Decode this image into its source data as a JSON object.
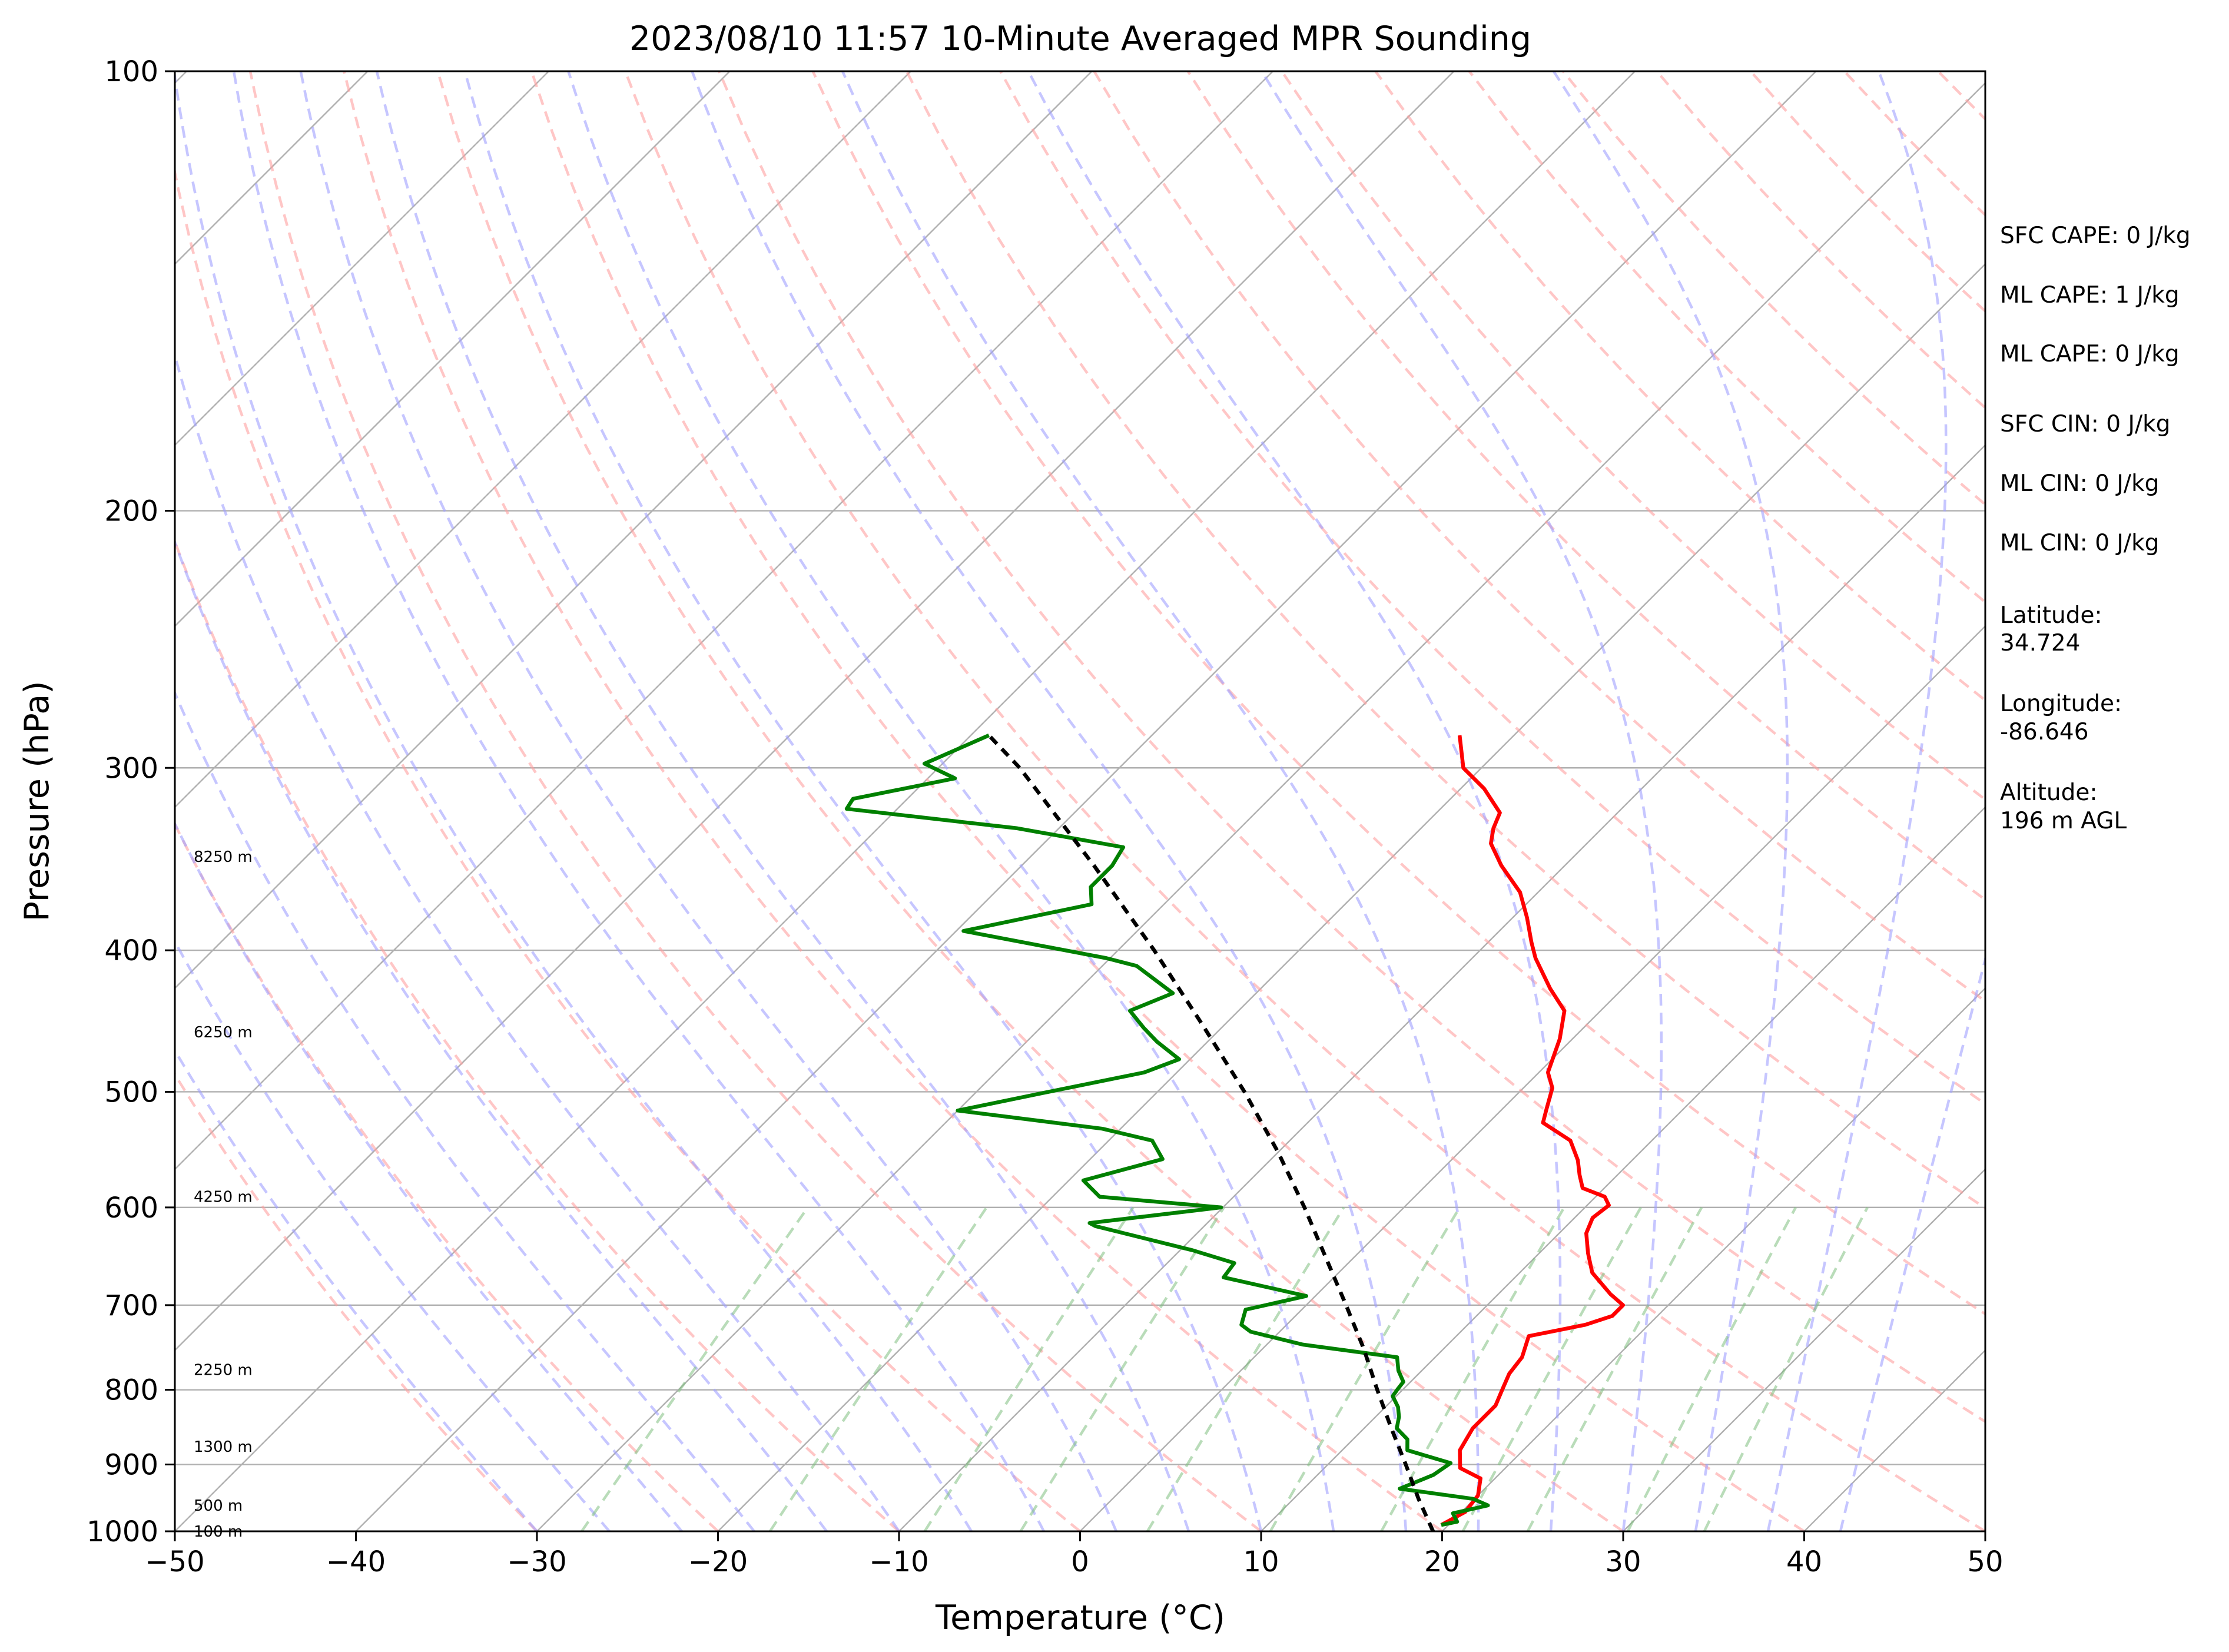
{
  "chart_data": {
    "type": "line",
    "title": "2023/08/10 11:57 10-Minute Averaged MPR Sounding",
    "xlabel": "Temperature (°C)",
    "ylabel": "Pressure (hPa)",
    "xlim": [
      -50,
      50
    ],
    "ylim": [
      1000,
      100
    ],
    "y_scale": "log",
    "grid": true,
    "x_ticks": [
      "−50",
      "−40",
      "−30",
      "−20",
      "−10",
      "0",
      "10",
      "20",
      "30",
      "40",
      "50"
    ],
    "y_ticks": [
      "100",
      "200",
      "300",
      "400",
      "500",
      "600",
      "700",
      "800",
      "900",
      "1000"
    ],
    "height_labels": [
      {
        "p": 1000,
        "text": "100 m"
      },
      {
        "p": 960,
        "text": "500 m"
      },
      {
        "p": 875,
        "text": "1300 m"
      },
      {
        "p": 775,
        "text": "2250 m"
      },
      {
        "p": 590,
        "text": "4250 m"
      },
      {
        "p": 455,
        "text": "6250 m"
      },
      {
        "p": 345,
        "text": "8250 m"
      }
    ],
    "series": [
      {
        "role": "temperature",
        "color": "#ff0000",
        "points": [
          {
            "p": 990,
            "t": 19.6
          },
          {
            "p": 970,
            "t": 20.2
          },
          {
            "p": 945,
            "t": 20.0
          },
          {
            "p": 920,
            "t": 19.2
          },
          {
            "p": 905,
            "t": 17.5
          },
          {
            "p": 880,
            "t": 16.5
          },
          {
            "p": 850,
            "t": 16.0
          },
          {
            "p": 820,
            "t": 16.0
          },
          {
            "p": 800,
            "t": 15.5
          },
          {
            "p": 780,
            "t": 15.0
          },
          {
            "p": 760,
            "t": 14.8
          },
          {
            "p": 735,
            "t": 14.0
          },
          {
            "p": 722,
            "t": 16.5
          },
          {
            "p": 712,
            "t": 17.5
          },
          {
            "p": 700,
            "t": 17.5
          },
          {
            "p": 688,
            "t": 16.2
          },
          {
            "p": 665,
            "t": 14.0
          },
          {
            "p": 645,
            "t": 12.7
          },
          {
            "p": 625,
            "t": 11.5
          },
          {
            "p": 610,
            "t": 11.0
          },
          {
            "p": 598,
            "t": 11.2
          },
          {
            "p": 590,
            "t": 10.5
          },
          {
            "p": 582,
            "t": 8.8
          },
          {
            "p": 570,
            "t": 7.9
          },
          {
            "p": 557,
            "t": 7.0
          },
          {
            "p": 540,
            "t": 5.5
          },
          {
            "p": 525,
            "t": 3.0
          },
          {
            "p": 515,
            "t": 2.5
          },
          {
            "p": 497,
            "t": 1.6
          },
          {
            "p": 485,
            "t": 0.5
          },
          {
            "p": 460,
            "t": -0.7
          },
          {
            "p": 440,
            "t": -2.0
          },
          {
            "p": 425,
            "t": -4.0
          },
          {
            "p": 405,
            "t": -6.5
          },
          {
            "p": 395,
            "t": -7.6
          },
          {
            "p": 380,
            "t": -9.2
          },
          {
            "p": 365,
            "t": -11.0
          },
          {
            "p": 350,
            "t": -13.5
          },
          {
            "p": 338,
            "t": -15.3
          },
          {
            "p": 330,
            "t": -16.0
          },
          {
            "p": 322,
            "t": -16.5
          },
          {
            "p": 310,
            "t": -18.7
          },
          {
            "p": 300,
            "t": -21.0
          },
          {
            "p": 285,
            "t": -23.0
          }
        ]
      },
      {
        "role": "dewpoint",
        "color": "#008000",
        "points": [
          {
            "p": 990,
            "t": 19.6
          },
          {
            "p": 985,
            "t": 20.3
          },
          {
            "p": 972,
            "t": 19.6
          },
          {
            "p": 960,
            "t": 21.1
          },
          {
            "p": 950,
            "t": 19.9
          },
          {
            "p": 935,
            "t": 15.3
          },
          {
            "p": 915,
            "t": 16.4
          },
          {
            "p": 898,
            "t": 16.7
          },
          {
            "p": 880,
            "t": 13.6
          },
          {
            "p": 865,
            "t": 13.0
          },
          {
            "p": 850,
            "t": 11.8
          },
          {
            "p": 835,
            "t": 11.3
          },
          {
            "p": 822,
            "t": 10.7
          },
          {
            "p": 808,
            "t": 9.8
          },
          {
            "p": 800,
            "t": 9.7
          },
          {
            "p": 790,
            "t": 9.6
          },
          {
            "p": 776,
            "t": 8.7
          },
          {
            "p": 760,
            "t": 7.9
          },
          {
            "p": 745,
            "t": 2.0
          },
          {
            "p": 730,
            "t": -1.6
          },
          {
            "p": 722,
            "t": -2.5
          },
          {
            "p": 705,
            "t": -3.1
          },
          {
            "p": 690,
            "t": -0.5
          },
          {
            "p": 670,
            "t": -6.1
          },
          {
            "p": 655,
            "t": -6.3
          },
          {
            "p": 642,
            "t": -9.3
          },
          {
            "p": 618,
            "t": -16.0
          },
          {
            "p": 615,
            "t": -16.5
          },
          {
            "p": 600,
            "t": -10.1
          },
          {
            "p": 590,
            "t": -17.4
          },
          {
            "p": 575,
            "t": -19.2
          },
          {
            "p": 556,
            "t": -16.0
          },
          {
            "p": 540,
            "t": -17.6
          },
          {
            "p": 530,
            "t": -21.0
          },
          {
            "p": 515,
            "t": -30.0
          },
          {
            "p": 500,
            "t": -26.0
          },
          {
            "p": 485,
            "t": -21.8
          },
          {
            "p": 475,
            "t": -20.6
          },
          {
            "p": 462,
            "t": -22.8
          },
          {
            "p": 452,
            "t": -24.3
          },
          {
            "p": 440,
            "t": -26.0
          },
          {
            "p": 428,
            "t": -24.6
          },
          {
            "p": 410,
            "t": -28.1
          },
          {
            "p": 405,
            "t": -30.2
          },
          {
            "p": 388,
            "t": -39.6
          },
          {
            "p": 372,
            "t": -34.0
          },
          {
            "p": 362,
            "t": -35.0
          },
          {
            "p": 350,
            "t": -35.0
          },
          {
            "p": 340,
            "t": -35.4
          },
          {
            "p": 330,
            "t": -42.3
          },
          {
            "p": 320,
            "t": -52.8
          },
          {
            "p": 315,
            "t": -53.0
          },
          {
            "p": 305,
            "t": -48.5
          },
          {
            "p": 298,
            "t": -51.0
          },
          {
            "p": 285,
            "t": -49.0
          }
        ]
      },
      {
        "role": "parcel",
        "color": "#000000",
        "style": "dashed",
        "points": [
          {
            "p": 1000,
            "t": 19.5
          },
          {
            "p": 950,
            "t": 16.9
          },
          {
            "p": 900,
            "t": 14.3
          },
          {
            "p": 850,
            "t": 11.5
          },
          {
            "p": 800,
            "t": 8.6
          },
          {
            "p": 750,
            "t": 5.6
          },
          {
            "p": 700,
            "t": 2.2
          },
          {
            "p": 650,
            "t": -1.5
          },
          {
            "p": 600,
            "t": -5.5
          },
          {
            "p": 550,
            "t": -10.0
          },
          {
            "p": 500,
            "t": -15.2
          },
          {
            "p": 450,
            "t": -21.2
          },
          {
            "p": 400,
            "t": -28.0
          },
          {
            "p": 350,
            "t": -36.0
          },
          {
            "p": 300,
            "t": -45.5
          },
          {
            "p": 285,
            "t": -49.0
          }
        ]
      }
    ]
  },
  "info_panel": [
    "SFC CAPE: 0 J/kg",
    "ML CAPE: 1 J/kg",
    "ML CAPE: 0 J/kg",
    "SFC CIN: 0 J/kg",
    "ML CIN: 0 J/kg",
    "ML CIN: 0 J/kg",
    "Latitude:",
    "34.724",
    "Longitude:",
    "-86.646",
    "Altitude:",
    "196 m AGL"
  ],
  "colors": {
    "isotherms": "#b0b0b0",
    "dry_adiabats": "#ffa0a0",
    "moist_adiabats": "#a0a0ff",
    "mixing_ratio": "#80c080",
    "isobars": "#b0b0b0"
  }
}
